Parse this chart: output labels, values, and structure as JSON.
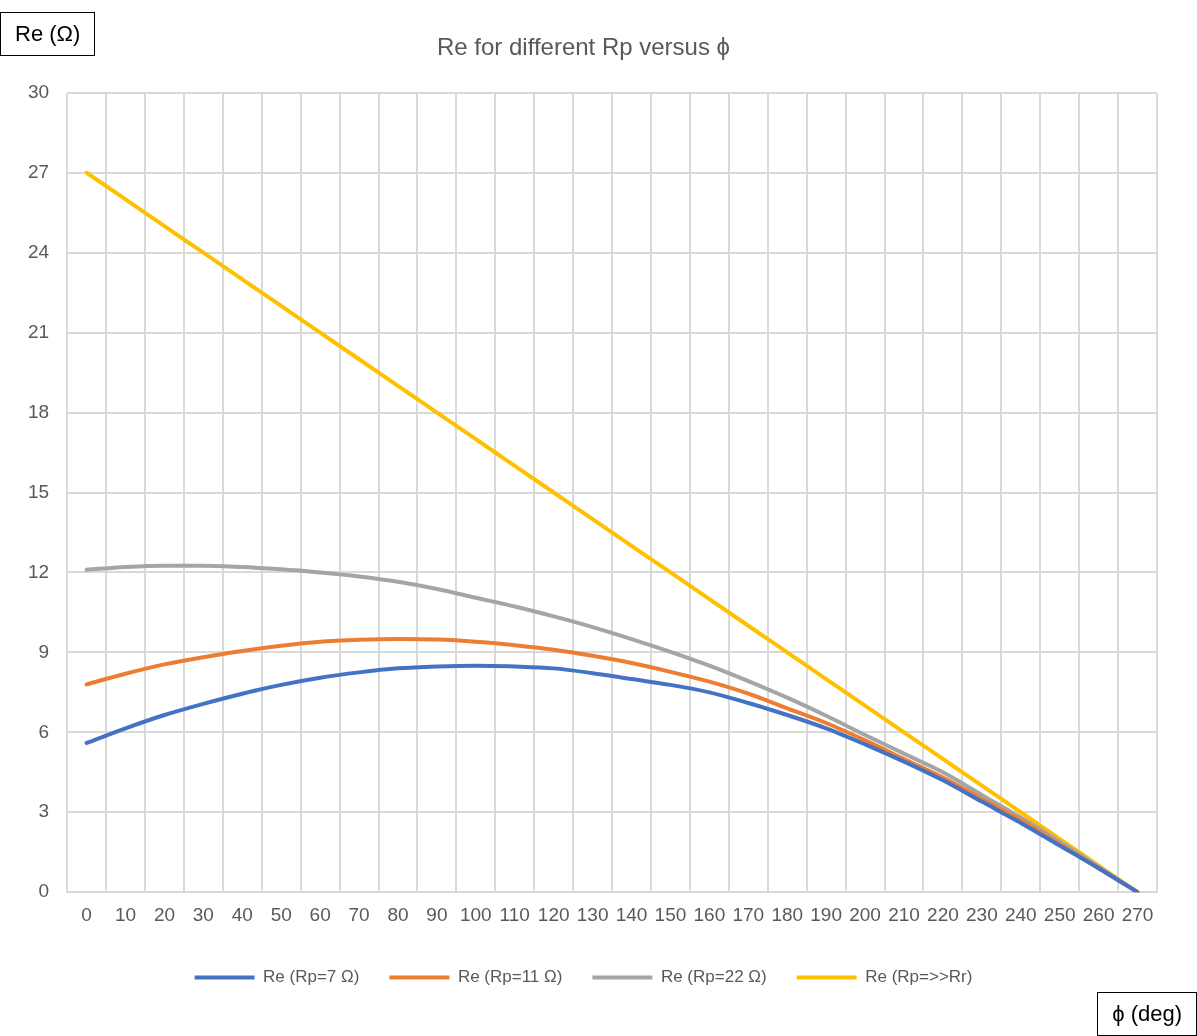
{
  "chart_data": {
    "type": "line",
    "title": "Re for different Rp versus ϕ",
    "xlabel": "ϕ (deg)",
    "ylabel": "Re (Ω)",
    "categories": [
      "0",
      "10",
      "20",
      "30",
      "40",
      "50",
      "60",
      "70",
      "80",
      "90",
      "100",
      "110",
      "120",
      "130",
      "140",
      "150",
      "160",
      "170",
      "180",
      "190",
      "200",
      "210",
      "220",
      "230",
      "240",
      "250",
      "260",
      "270"
    ],
    "series": [
      {
        "name": "Re (Rp=7 Ω)",
        "color": "#4472c4",
        "values": [
          5.6,
          6.15,
          6.65,
          7.07,
          7.45,
          7.78,
          8.05,
          8.25,
          8.4,
          8.47,
          8.5,
          8.47,
          8.4,
          8.22,
          8.0,
          7.78,
          7.5,
          7.1,
          6.65,
          6.15,
          5.55,
          4.9,
          4.2,
          3.4,
          2.6,
          1.75,
          0.9,
          0
        ]
      },
      {
        "name": "Re (Rp=11 Ω)",
        "color": "#ed7d31",
        "values": [
          7.8,
          8.2,
          8.55,
          8.82,
          9.05,
          9.25,
          9.4,
          9.47,
          9.5,
          9.48,
          9.4,
          9.27,
          9.1,
          8.87,
          8.6,
          8.27,
          7.9,
          7.45,
          6.9,
          6.35,
          5.7,
          5.0,
          4.3,
          3.5,
          2.7,
          1.8,
          0.9,
          0
        ]
      },
      {
        "name": "Re (Rp=22 Ω)",
        "color": "#a5a5a5",
        "values": [
          12.1,
          12.2,
          12.25,
          12.25,
          12.2,
          12.12,
          12.0,
          11.85,
          11.65,
          11.38,
          11.05,
          10.72,
          10.35,
          9.95,
          9.5,
          9.02,
          8.5,
          7.92,
          7.3,
          6.62,
          5.9,
          5.2,
          4.5,
          3.65,
          2.8,
          1.9,
          0.95,
          0
        ]
      },
      {
        "name": "Re (Rp=>>Rr)",
        "color": "#ffc000",
        "values": [
          27,
          26,
          25,
          24,
          23,
          22,
          21,
          20,
          19,
          18,
          17,
          16,
          15,
          14,
          13,
          12,
          11,
          10,
          9,
          8,
          7,
          6,
          5,
          4,
          3,
          2,
          1,
          0
        ]
      }
    ],
    "ylim": [
      0,
      30
    ],
    "yticks": [
      0,
      3,
      6,
      9,
      12,
      15,
      18,
      21,
      24,
      27,
      30
    ],
    "grid": true,
    "legend": "bottom",
    "marker": "none",
    "line_style": "solid"
  }
}
